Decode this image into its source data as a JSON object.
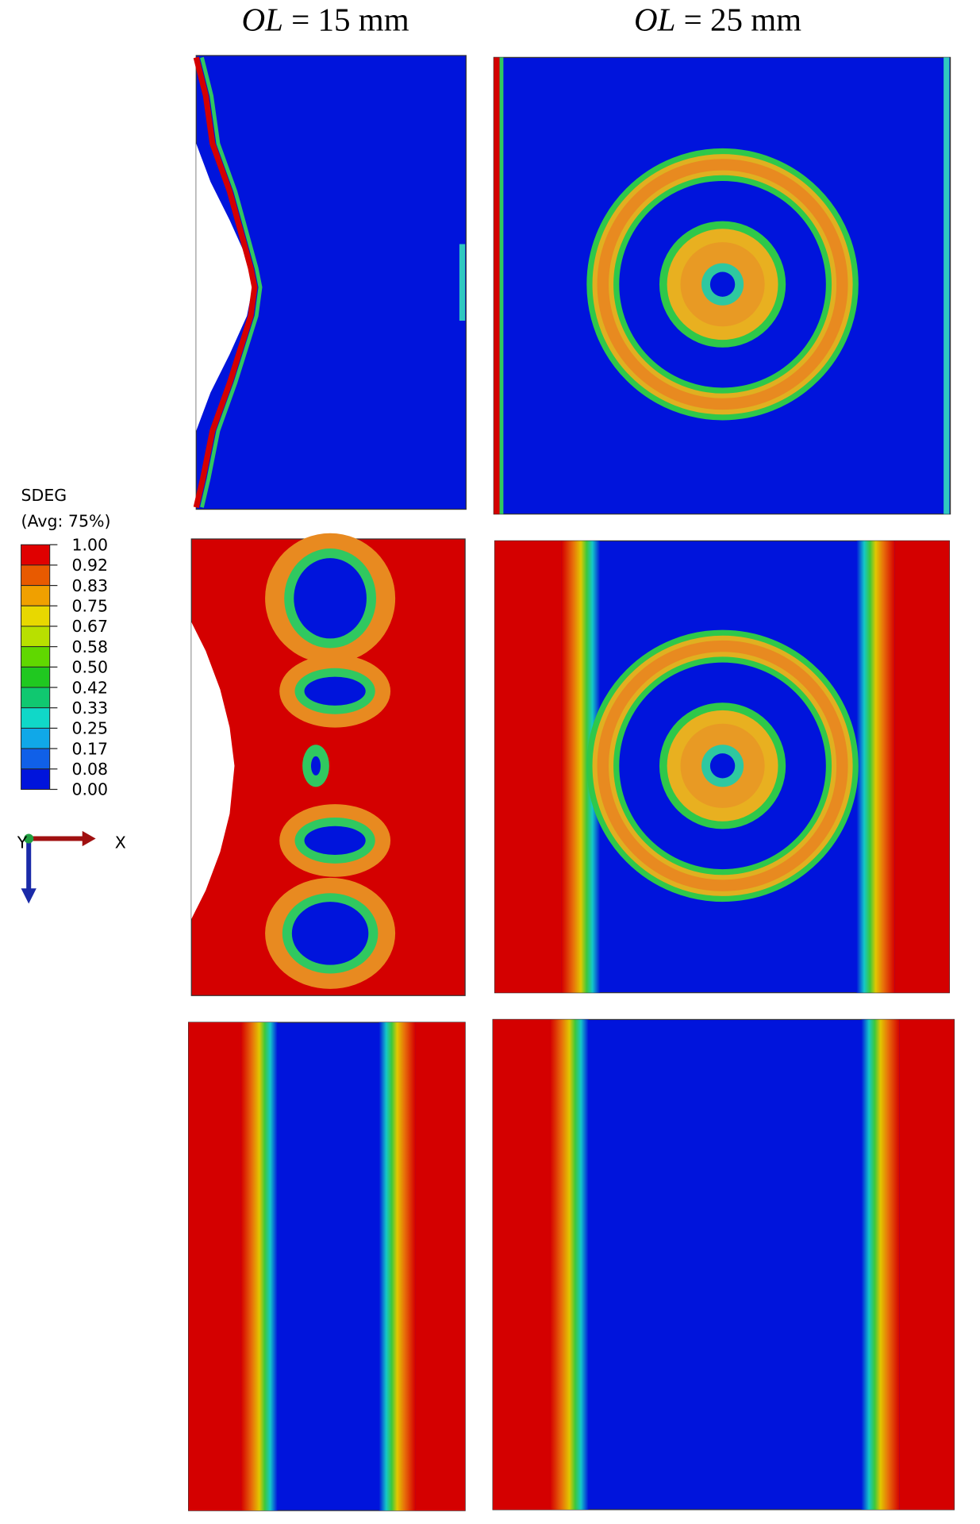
{
  "header": {
    "columns": [
      {
        "symbol": "OL",
        "text": "= 15 mm"
      },
      {
        "symbol": "OL",
        "text": "= 25 mm"
      }
    ]
  },
  "legend": {
    "title": "SDEG",
    "subtitle": "(Avg: 75%)",
    "labels": [
      "1.00",
      "0.92",
      "0.83",
      "0.75",
      "0.67",
      "0.58",
      "0.50",
      "0.42",
      "0.33",
      "0.25",
      "0.17",
      "0.08",
      "0.00"
    ]
  },
  "triad": {
    "x": "X",
    "y": "Y"
  }
}
